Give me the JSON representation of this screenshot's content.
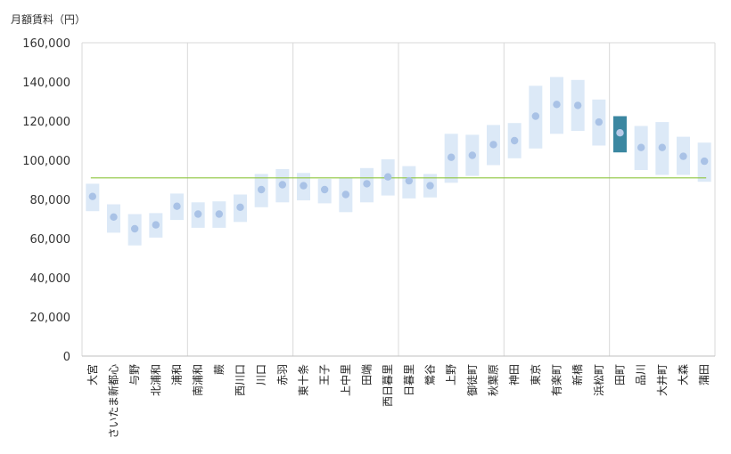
{
  "chart_data": {
    "type": "range-bar",
    "ylabel": "月額賃料（円）",
    "ylim": [
      0,
      160000
    ],
    "yticks": [
      0,
      20000,
      40000,
      60000,
      80000,
      100000,
      120000,
      140000,
      160000
    ],
    "ytick_labels": [
      "0",
      "20,000",
      "40,000",
      "60,000",
      "80,000",
      "100,000",
      "120,000",
      "140,000",
      "160,000"
    ],
    "reference_line": 91000,
    "highlight": "田町",
    "colors": {
      "range": "#dce9f7",
      "point": "#a9c2e6",
      "highlight_range": "#3b87a1",
      "highlight_point": "#b8cbe8",
      "reference": "#8dc63f",
      "grid": "#d9d9d9",
      "axis": "#bfbfbf"
    },
    "categories": [
      "大宮",
      "さいたま新都心",
      "与野",
      "北浦和",
      "浦和",
      "南浦和",
      "蕨",
      "西川口",
      "川口",
      "赤羽",
      "東十条",
      "王子",
      "上中里",
      "田端",
      "西日暮里",
      "日暮里",
      "鶯谷",
      "上野",
      "御徒町",
      "秋葉原",
      "神田",
      "東京",
      "有楽町",
      "新橋",
      "浜松町",
      "田町",
      "品川",
      "大井町",
      "大森",
      "蒲田"
    ],
    "low": [
      74000,
      63000,
      56500,
      60500,
      69500,
      65500,
      65500,
      68500,
      76000,
      78500,
      79500,
      78000,
      73500,
      78500,
      82000,
      80500,
      81000,
      88500,
      92000,
      97500,
      101000,
      106000,
      113500,
      115000,
      107500,
      104000,
      95000,
      92500,
      92500,
      89000
    ],
    "high": [
      88000,
      77500,
      72500,
      73000,
      83000,
      78500,
      79000,
      82500,
      93000,
      95500,
      93500,
      90500,
      91000,
      96000,
      100500,
      97000,
      93000,
      113500,
      113000,
      118000,
      119000,
      138000,
      142500,
      141000,
      131000,
      122500,
      117500,
      119500,
      112000,
      109000
    ],
    "mid": [
      81500,
      71000,
      65000,
      67000,
      76500,
      72500,
      72500,
      76000,
      85000,
      87500,
      87000,
      85000,
      82500,
      88000,
      91500,
      89500,
      87000,
      101500,
      102500,
      108000,
      110000,
      122500,
      128500,
      128000,
      119500,
      114000,
      106500,
      106500,
      102000,
      99500
    ],
    "group_dividers_after": [
      4,
      9,
      14,
      19,
      24
    ]
  }
}
